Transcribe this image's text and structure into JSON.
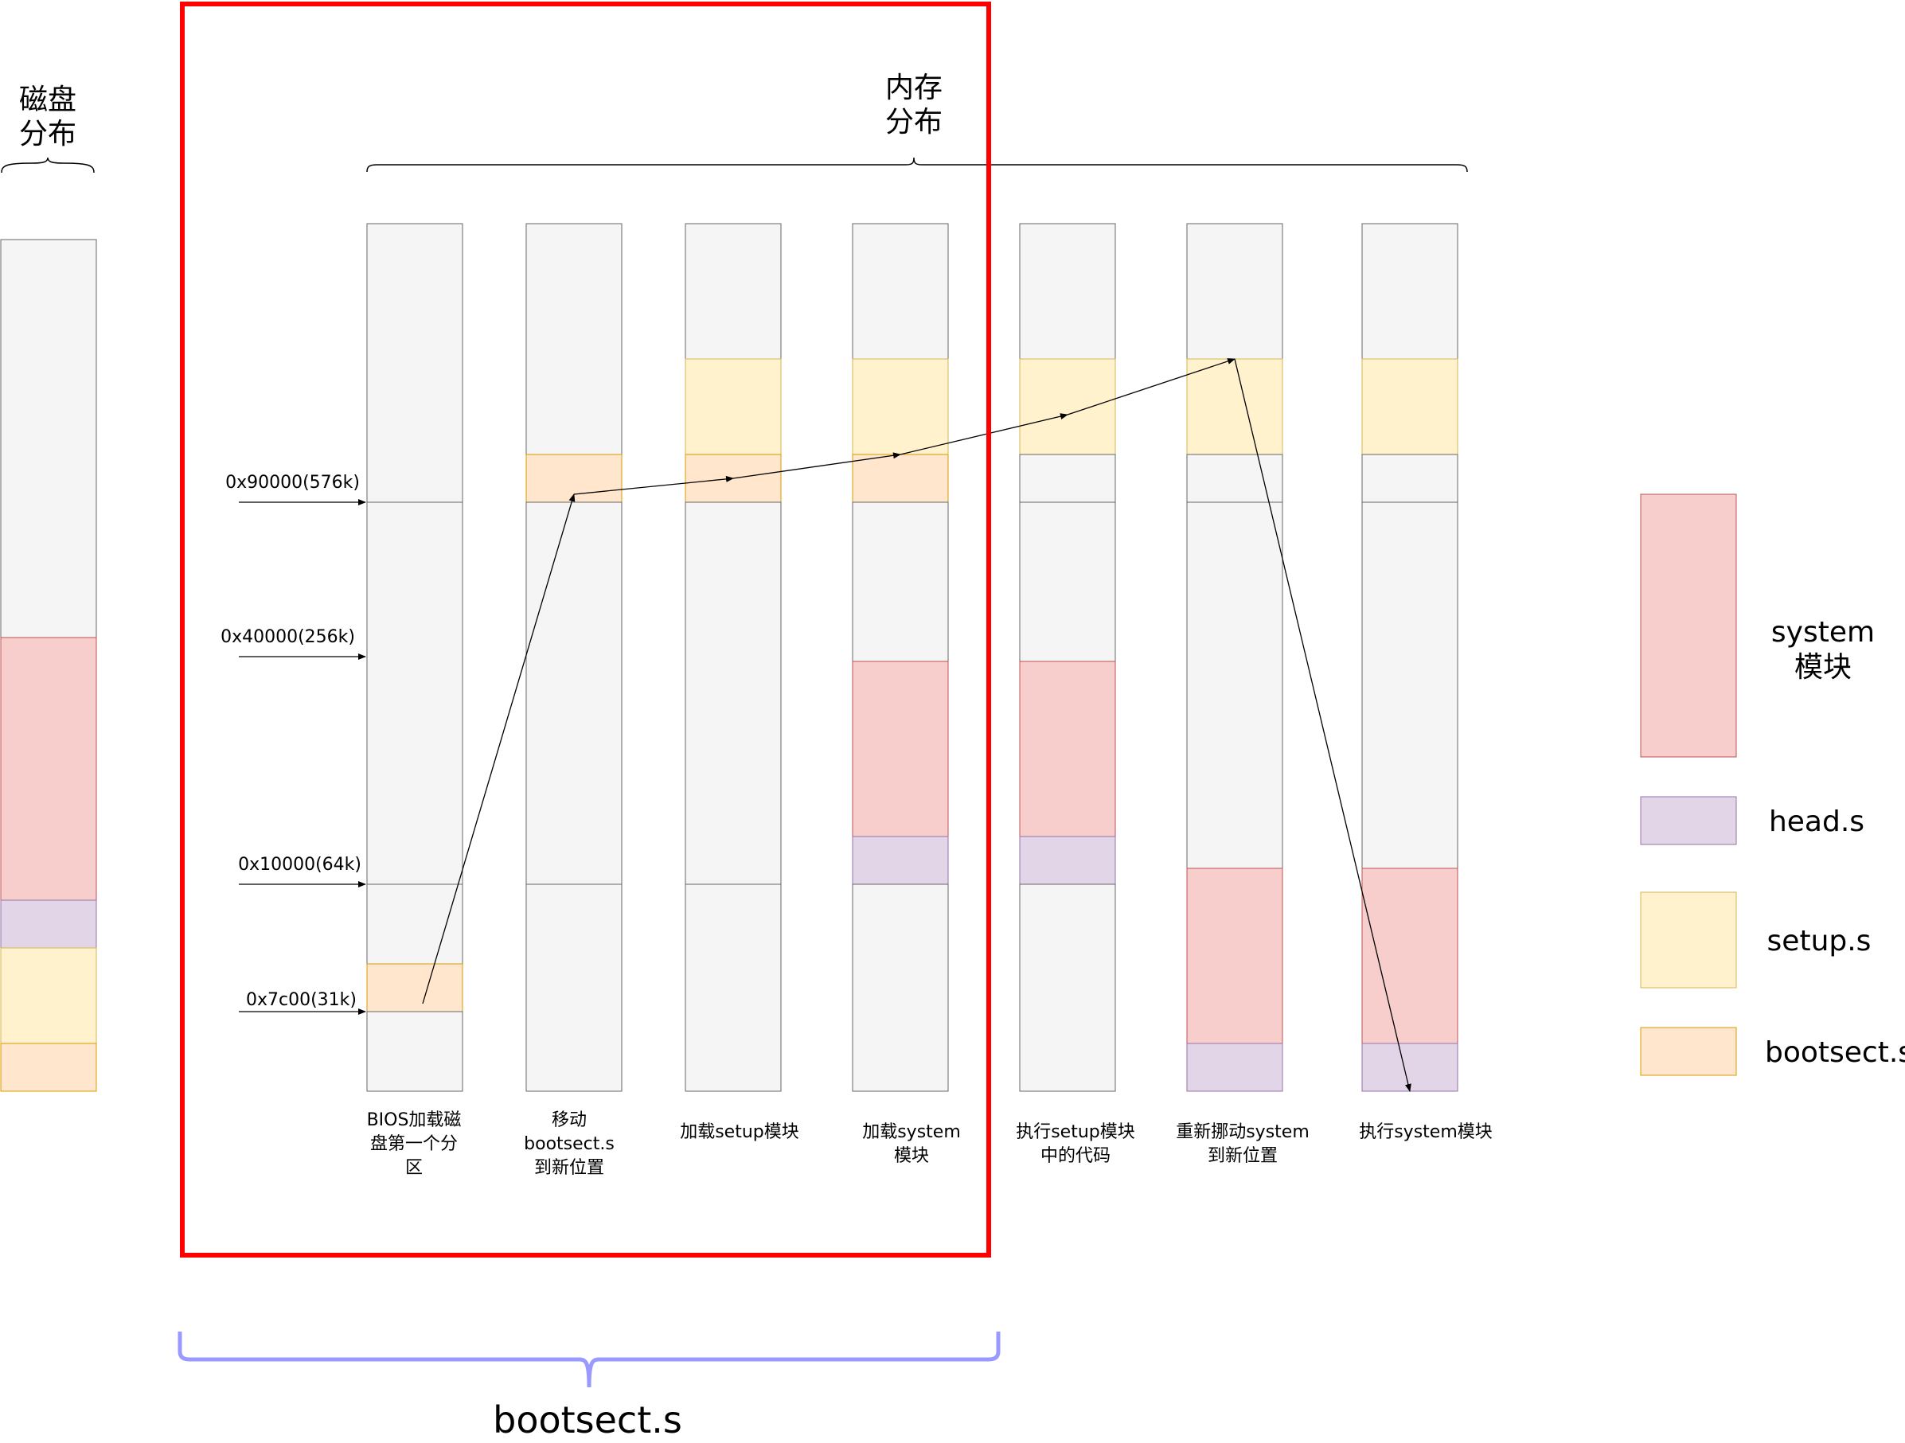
{
  "disk_title_lines": [
    "磁盘",
    "分布"
  ],
  "memory_title_lines": [
    "内存",
    "分布"
  ],
  "bootsect_brace_label": "bootsect.s",
  "addresses": [
    "0x90000(576k)",
    "0x40000(256k)",
    "0x10000(64k)",
    "0x7c00(31k)"
  ],
  "step_labels": [
    [
      "BIOS加载磁",
      "盘第一个分",
      "区"
    ],
    [
      "移动",
      "bootsect.s",
      "到新位置"
    ],
    [
      "加载setup模块"
    ],
    [
      "加载system",
      "模块"
    ],
    [
      "执行setup模块",
      "中的代码"
    ],
    [
      "重新挪动system",
      "到新位置"
    ],
    [
      "执行system模块"
    ]
  ],
  "legend": [
    {
      "key": "system",
      "lines": [
        "system",
        "模块"
      ]
    },
    {
      "key": "head",
      "lines": [
        "head.s"
      ]
    },
    {
      "key": "setup",
      "lines": [
        "setup.s"
      ]
    },
    {
      "key": "bootsect",
      "lines": [
        "bootsect.s"
      ]
    }
  ],
  "colors": {
    "empty_fill": "#f5f5f5",
    "empty_stroke": "#666666",
    "system_fill": "#f8cecc",
    "system_stroke": "#b85450",
    "head_fill": "#e1d5e7",
    "head_stroke": "#9673a6",
    "setup_fill": "#fff2cc",
    "setup_stroke": "#d6b656",
    "bootsect_fill": "#ffe6cc",
    "bootsect_stroke": "#d79b00",
    "highlight_box": "#ff0000",
    "bootsect_brace": "#9999ff"
  }
}
